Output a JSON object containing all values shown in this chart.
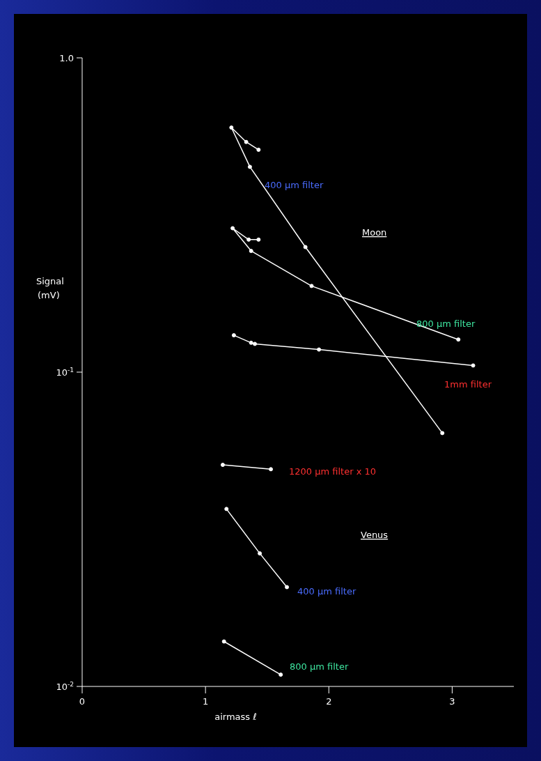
{
  "chart_data": {
    "type": "line",
    "xlabel": "airmass ℓ",
    "ylabel": "Signal (mV)",
    "log": "y",
    "xlim": [
      0,
      3.5
    ],
    "xticks": [
      0,
      1,
      2,
      3
    ],
    "ylim": [
      0.01,
      1
    ],
    "yticks": [
      {
        "value": 1,
        "label": "1.0"
      },
      {
        "value": 0.1,
        "label": "10$^{-1}$"
      },
      {
        "value": 0.01,
        "label": "10$^{-2}$"
      }
    ],
    "grid": false,
    "legend": false,
    "marker": "circle",
    "line_style": "solid",
    "series": [
      {
        "color": "#ffffff",
        "x": [
          1.43,
          1.33,
          1.21,
          1.36,
          1.81,
          2.92
        ],
        "values": [
          0.51,
          0.54,
          0.6,
          0.45,
          0.25,
          0.064
        ]
      },
      {
        "color": "#ffffff",
        "x": [
          1.43,
          1.35,
          1.22,
          1.37,
          1.86,
          3.05
        ],
        "values": [
          0.264,
          0.264,
          0.287,
          0.243,
          0.188,
          0.127
        ]
      },
      {
        "color": "#ffffff",
        "x": [
          1.23,
          1.37,
          1.4,
          1.92,
          3.17
        ],
        "values": [
          0.131,
          0.124,
          0.123,
          0.118,
          0.105
        ]
      },
      {
        "color": "#ffffff",
        "x": [
          1.14,
          1.53
        ],
        "values": [
          0.0507,
          0.0491
        ]
      },
      {
        "color": "#ffffff",
        "x": [
          1.17,
          1.44,
          1.66
        ],
        "values": [
          0.0367,
          0.0265,
          0.0207
        ]
      },
      {
        "color": "#ffffff",
        "x": [
          1.15,
          1.61
        ],
        "values": [
          0.0139,
          0.0109
        ]
      }
    ],
    "annotations": [
      "400 μm filter",
      "Moon",
      "800 μm filter",
      "1mm filter",
      "1200 μm filter x 10",
      "Venus",
      "400 μm filter",
      "800 μm filter"
    ]
  }
}
